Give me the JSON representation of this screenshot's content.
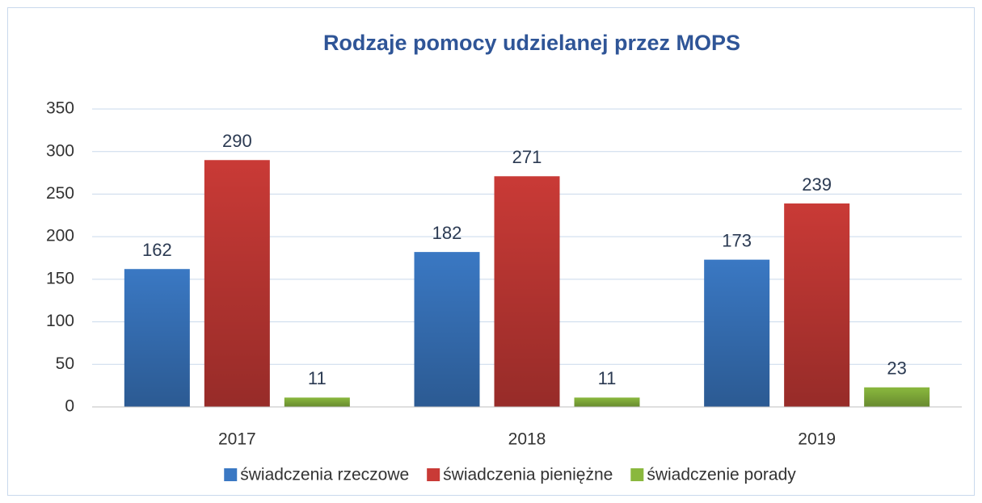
{
  "chart_data": {
    "type": "bar",
    "title": "Rodzaje pomocy udzielanej przez MOPS",
    "categories": [
      "2017",
      "2018",
      "2019"
    ],
    "series": [
      {
        "name": "świadczenia rzeczowe",
        "color": "#3a78c3",
        "values": [
          162,
          182,
          173
        ]
      },
      {
        "name": "świadczenia pieniężne",
        "color": "#c93a36",
        "values": [
          290,
          271,
          239
        ]
      },
      {
        "name": "świadczenie porady",
        "color": "#8ab83e",
        "values": [
          11,
          11,
          23
        ]
      }
    ],
    "ylim": [
      0,
      350
    ],
    "yticks": [
      0,
      50,
      100,
      150,
      200,
      250,
      300,
      350
    ],
    "grid": true,
    "legend": "bottom"
  }
}
